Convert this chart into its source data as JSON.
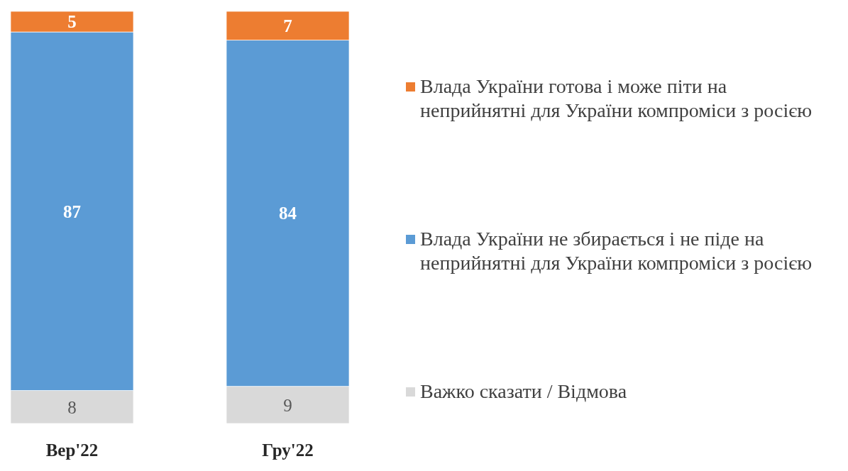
{
  "chart_data": {
    "type": "bar",
    "stacked": true,
    "categories": [
      "Вер'22",
      "Гру'22"
    ],
    "series": [
      {
        "name": "Важко сказати / Відмова",
        "color": "#d9d9d9",
        "values": [
          8,
          9
        ]
      },
      {
        "name": "Влада України не збирається і не піде на неприйнятні для України компроміси з росією",
        "color": "#5b9bd5",
        "values": [
          87,
          84
        ]
      },
      {
        "name": "Влада України готова і може піти на неприйнятні для України компроміси з росією",
        "color": "#ed7d31",
        "values": [
          5,
          7
        ]
      }
    ],
    "data_labels": true,
    "legend": "right"
  }
}
